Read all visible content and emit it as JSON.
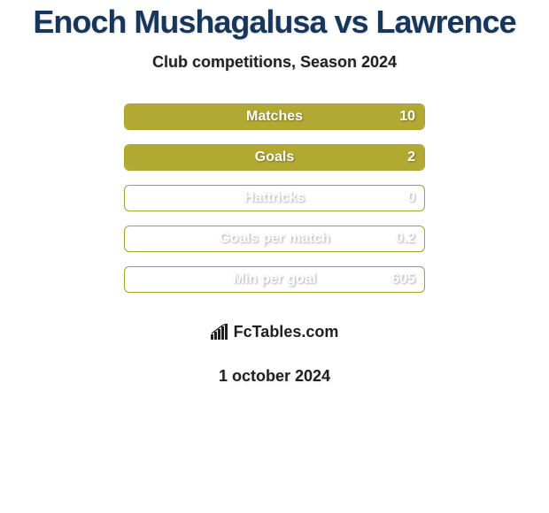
{
  "title": "Enoch Mushagalusa vs Lawrence",
  "subtitle": "Club competitions, Season 2024",
  "date": "1 october 2024",
  "brand_text": "FcTables.com",
  "colors": {
    "background": "#ffffff",
    "title_color": "#17365b",
    "subtitle_color": "#212020",
    "bar_border": "#a9a02d",
    "bar_fill": "#b2a932",
    "bar_text": "#ffffff",
    "ellipse_left": "#ffffff",
    "ellipse_right": "#ffffff",
    "brand_bg": "#ffffff",
    "brand_text": "#212020",
    "date_color": "#212020"
  },
  "ellipses": {
    "left": [
      {
        "visible": true,
        "width": 108
      },
      {
        "visible": true,
        "width": 96
      },
      {
        "visible": false,
        "width": 0
      },
      {
        "visible": false,
        "width": 0
      },
      {
        "visible": false,
        "width": 0
      }
    ],
    "right": [
      {
        "visible": true,
        "width": 84
      },
      {
        "visible": true,
        "width": 100
      },
      {
        "visible": false,
        "width": 0
      },
      {
        "visible": false,
        "width": 0
      },
      {
        "visible": false,
        "width": 0
      }
    ]
  },
  "bars": [
    {
      "label": "Matches",
      "value": "10",
      "fill_from": "right",
      "fill_pct": 100
    },
    {
      "label": "Goals",
      "value": "2",
      "fill_from": "right",
      "fill_pct": 100
    },
    {
      "label": "Hattricks",
      "value": "0",
      "fill_from": "right",
      "fill_pct": 0
    },
    {
      "label": "Goals per match",
      "value": "0.2",
      "fill_from": "right",
      "fill_pct": 0
    },
    {
      "label": "Min per goal",
      "value": "605",
      "fill_from": "right",
      "fill_pct": 0
    }
  ]
}
